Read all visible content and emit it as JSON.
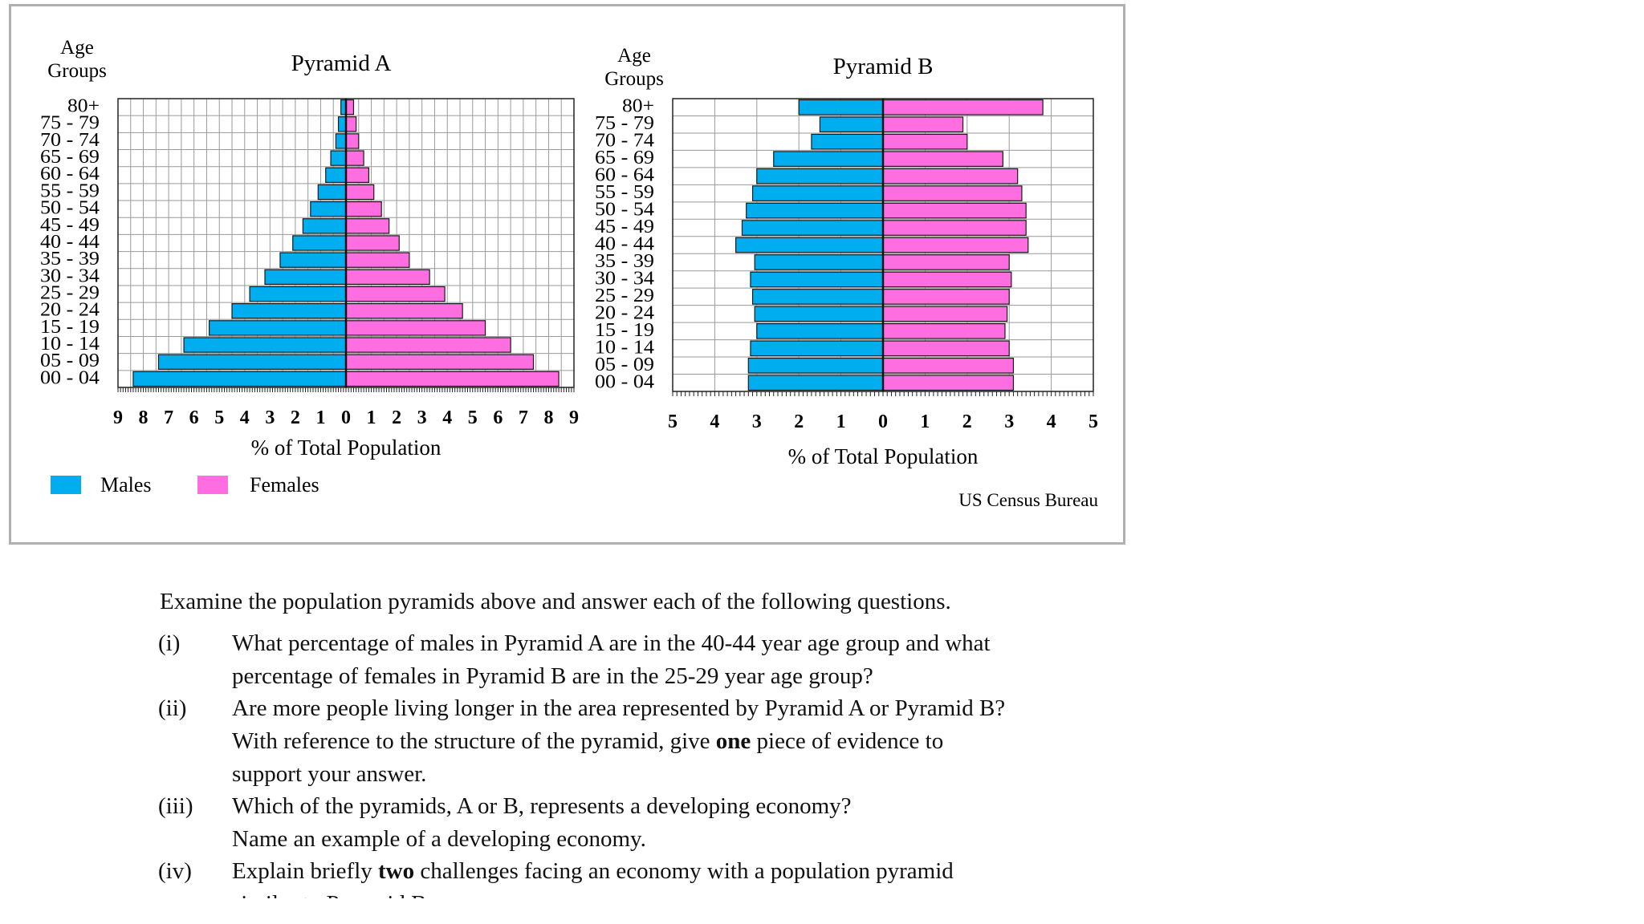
{
  "chart_data": [
    {
      "type": "bar",
      "orientation": "horizontal-population-pyramid",
      "title": "Pyramid A",
      "ylabel": "Age\nGroups",
      "xlabel": "% of Total Population",
      "categories": [
        "80+",
        "75 - 79",
        "70 - 74",
        "65 - 69",
        "60 - 64",
        "55 - 59",
        "50 - 54",
        "45 - 49",
        "40 - 44",
        "35 - 39",
        "30 - 34",
        "25 - 29",
        "20 - 24",
        "15 - 19",
        "10 - 14",
        "05 - 09",
        "00 - 04"
      ],
      "x_ticks": [
        "9",
        "8",
        "7",
        "6",
        "5",
        "4",
        "3",
        "2",
        "1",
        "0",
        "1",
        "2",
        "3",
        "4",
        "5",
        "6",
        "7",
        "8",
        "9"
      ],
      "xlim": [
        -9,
        9
      ],
      "series": [
        {
          "name": "Males",
          "color": "#00aeef",
          "values": [
            0.2,
            0.3,
            0.4,
            0.6,
            0.8,
            1.1,
            1.4,
            1.7,
            2.1,
            2.6,
            3.2,
            3.8,
            4.5,
            5.4,
            6.4,
            7.4,
            8.4
          ]
        },
        {
          "name": "Females",
          "color": "#ff6ee0",
          "values": [
            0.3,
            0.4,
            0.5,
            0.7,
            0.9,
            1.1,
            1.4,
            1.7,
            2.1,
            2.5,
            3.3,
            3.9,
            4.6,
            5.5,
            6.5,
            7.4,
            8.4
          ]
        }
      ]
    },
    {
      "type": "bar",
      "orientation": "horizontal-population-pyramid",
      "title": "Pyramid B",
      "ylabel": "Age\nGroups",
      "xlabel": "% of Total Population",
      "categories": [
        "80+",
        "75 - 79",
        "70 - 74",
        "65 - 69",
        "60 - 64",
        "55 - 59",
        "50 - 54",
        "45 - 49",
        "40 - 44",
        "35 - 39",
        "30 - 34",
        "25 - 29",
        "20 - 24",
        "15 - 19",
        "10 - 14",
        "05 - 09",
        "00 - 04"
      ],
      "x_ticks": [
        "5",
        "4",
        "3",
        "2",
        "1",
        "0",
        "1",
        "2",
        "3",
        "4",
        "5"
      ],
      "xlim": [
        -5,
        5
      ],
      "source": "US Census Bureau",
      "series": [
        {
          "name": "Males",
          "color": "#00aeef",
          "values": [
            2.0,
            1.5,
            1.7,
            2.6,
            3.0,
            3.1,
            3.25,
            3.35,
            3.5,
            3.05,
            3.15,
            3.1,
            3.05,
            3.0,
            3.15,
            3.2,
            3.2
          ]
        },
        {
          "name": "Females",
          "color": "#ff6ee0",
          "values": [
            3.8,
            1.9,
            2.0,
            2.85,
            3.2,
            3.3,
            3.4,
            3.4,
            3.45,
            3.0,
            3.05,
            3.0,
            2.95,
            2.9,
            3.0,
            3.1,
            3.1
          ]
        }
      ]
    }
  ],
  "legend": {
    "males_label": "Males",
    "females_label": "Females",
    "males_color": "#00aeef",
    "females_color": "#ff6ee0"
  },
  "questions": {
    "intro": "Examine the population pyramids above and answer each of the following questions.",
    "items": [
      {
        "num": "(i)",
        "lines": [
          "What percentage of males in Pyramid A are in the 40-44 year age group and what",
          "percentage of females in Pyramid B are in the 25-29 year age group?"
        ]
      },
      {
        "num": "(ii)",
        "lines": [
          "Are more people living longer in the area represented by Pyramid A or Pyramid B?",
          "With reference to the structure of the pyramid, give |one| piece of evidence to",
          "support your answer."
        ]
      },
      {
        "num": "(iii)",
        "lines": [
          "Which of the pyramids, A or B, represents a developing economy?",
          "Name an example of a developing economy."
        ]
      },
      {
        "num": "(iv)",
        "lines": [
          "Explain briefly |two| challenges facing an economy with a population pyramid",
          "similar to Pyramid B."
        ]
      }
    ]
  }
}
